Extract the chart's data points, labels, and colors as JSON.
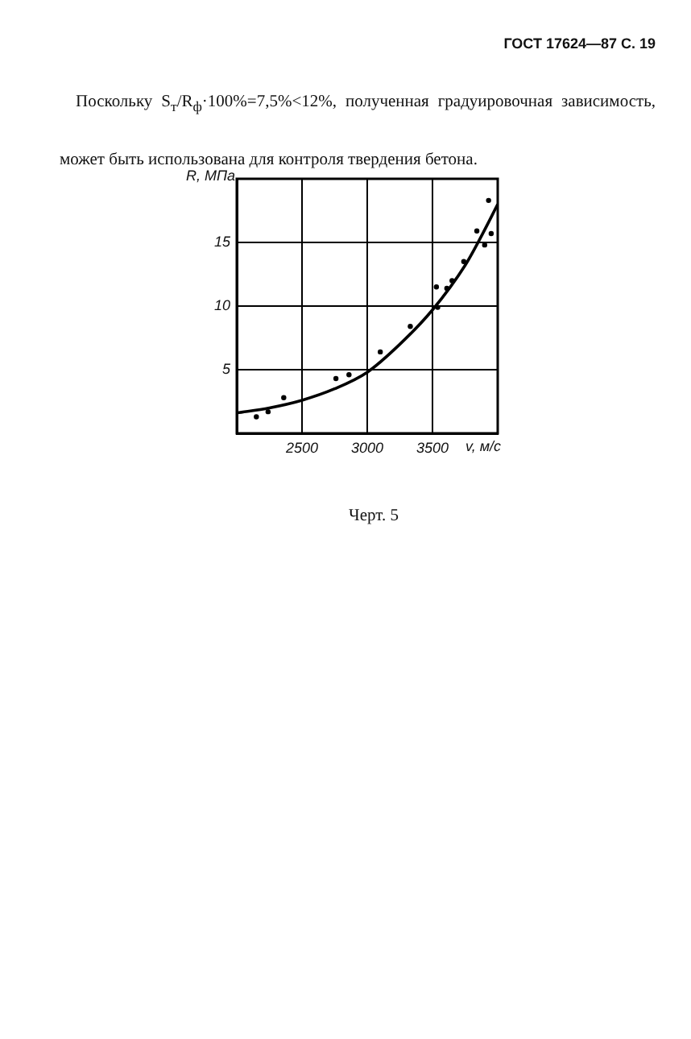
{
  "chart_data": {
    "type": "scatter",
    "xlabel": "v, м/с",
    "ylabel": "R, МПа",
    "annotations": [
      "ГОСТ 17624—87 С. 19",
      "Поскольку S$_{т}$/R$_{ф}$·100%=7,5%<12%, полученная градуировочная зависимость, может быть использована для контроля твердения бетона.",
      "Черт. 5"
    ],
    "series": [
      {
        "type": "scatter",
        "color": "#000000",
        "marker": "circle",
        "x": [
          2150,
          2240,
          2360,
          2760,
          2860,
          3100,
          3330,
          3530,
          3540,
          3610,
          3650,
          3740,
          3840,
          3900,
          3930,
          3950
        ],
        "values": [
          1.3,
          1.7,
          2.8,
          4.3,
          4.6,
          6.4,
          8.4,
          11.5,
          9.9,
          11.4,
          12.0,
          13.5,
          15.9,
          14.8,
          18.3,
          15.7
        ]
      },
      {
        "type": "line",
        "color": "#000000",
        "marker": "none",
        "x": [
          2000,
          2250,
          2500,
          2750,
          3000,
          3250,
          3500,
          3750,
          3875,
          4000
        ],
        "values": [
          1.6,
          2.0,
          2.6,
          3.5,
          4.8,
          7.0,
          9.7,
          13.2,
          15.5,
          18.0
        ]
      }
    ],
    "xlim": [
      2000,
      4000
    ],
    "xticks": [
      2500,
      3000,
      3500
    ],
    "ylim": [
      0,
      20
    ],
    "yticks": [
      5,
      10,
      15
    ],
    "grid": true
  }
}
